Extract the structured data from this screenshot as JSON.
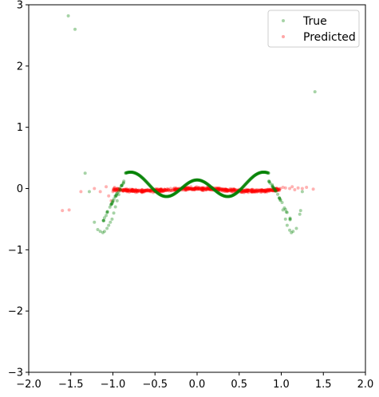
{
  "chart_data": {
    "type": "scatter",
    "title": "",
    "xlabel": "",
    "ylabel": "",
    "xlim": [
      -2.0,
      2.0
    ],
    "ylim": [
      -3,
      3
    ],
    "xticks": [
      "−2.0",
      "−1.5",
      "−1.0",
      "−0.5",
      "0.0",
      "0.5",
      "1.0",
      "1.5",
      "2.0"
    ],
    "xtick_values": [
      -2.0,
      -1.5,
      -1.0,
      -0.5,
      0.0,
      0.5,
      1.0,
      1.5,
      2.0
    ],
    "yticks": [
      "−3",
      "−2",
      "−1",
      "0",
      "1",
      "2",
      "3"
    ],
    "ytick_values": [
      -3,
      -2,
      -1,
      0,
      1,
      2,
      3
    ],
    "grid": false,
    "legend_position": "top-right",
    "series": [
      {
        "name": "True",
        "color": "#008000",
        "curve_segments": [
          {
            "x_start": -1.12,
            "x_end": 1.12,
            "samples": 360,
            "model": "cubic_fit_then_noise"
          }
        ],
        "points": [
          [
            -1.53,
            2.82
          ],
          [
            -1.45,
            2.6
          ],
          [
            -1.33,
            0.25
          ],
          [
            -1.28,
            -0.05
          ],
          [
            -1.22,
            -0.55
          ],
          [
            -1.18,
            -0.67
          ],
          [
            -1.15,
            -0.7
          ],
          [
            -1.12,
            -0.72
          ],
          [
            -1.1,
            -0.7
          ],
          [
            -1.07,
            -0.65
          ],
          [
            -1.05,
            -0.6
          ],
          [
            -1.03,
            -0.55
          ],
          [
            -1.01,
            -0.5
          ],
          [
            -0.99,
            -0.4
          ],
          [
            -0.97,
            -0.3
          ],
          [
            -0.95,
            -0.2
          ],
          [
            -0.93,
            -0.1
          ],
          [
            -0.91,
            -0.02
          ],
          [
            -0.89,
            0.06
          ],
          [
            -0.87,
            0.12
          ],
          [
            1.02,
            -0.35
          ],
          [
            1.05,
            -0.5
          ],
          [
            1.07,
            -0.6
          ],
          [
            1.1,
            -0.68
          ],
          [
            1.12,
            -0.72
          ],
          [
            1.14,
            -0.7
          ],
          [
            1.18,
            -0.65
          ],
          [
            1.22,
            -0.42
          ],
          [
            1.23,
            -0.36
          ],
          [
            1.25,
            -0.05
          ],
          [
            1.4,
            1.58
          ]
        ]
      },
      {
        "name": "Predicted",
        "color": "#ff0000",
        "points": [
          [
            -1.6,
            -0.36
          ],
          [
            -1.52,
            -0.35
          ],
          [
            -1.38,
            -0.05
          ],
          [
            -1.22,
            0.0
          ],
          [
            -1.15,
            -0.05
          ],
          [
            -1.08,
            0.03
          ],
          [
            -1.05,
            -0.12
          ],
          [
            -1.02,
            -0.2
          ],
          [
            -1.0,
            -0.05
          ],
          [
            -0.98,
            0.02
          ],
          [
            1.02,
            0.02
          ],
          [
            1.05,
            0.01
          ],
          [
            1.1,
            0.0
          ],
          [
            1.13,
            0.03
          ],
          [
            1.16,
            -0.02
          ],
          [
            1.2,
            0.01
          ],
          [
            1.25,
            0.0
          ],
          [
            1.3,
            0.02
          ],
          [
            1.38,
            -0.01
          ]
        ]
      }
    ]
  }
}
